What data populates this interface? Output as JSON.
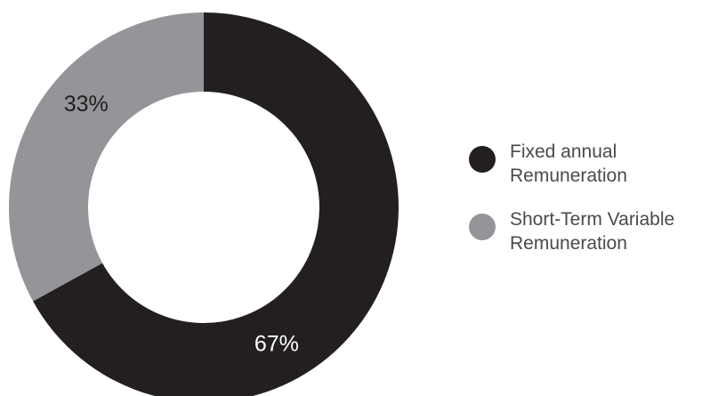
{
  "chart_data": {
    "type": "pie",
    "variant": "donut",
    "categories": [
      "Fixed annual Remuneration",
      "Short-Term Variable Remuneration"
    ],
    "values": [
      67,
      33
    ],
    "slice_labels": [
      "67%",
      "33%"
    ],
    "colors": [
      "#231f20",
      "#939598"
    ],
    "label_colors": [
      "#ffffff",
      "#231f20"
    ],
    "legend": {
      "placement": "right",
      "items": [
        {
          "label": "Fixed annual\nRemuneration",
          "color": "#231f20",
          "marker": "circle"
        },
        {
          "label": "Short-Term Variable\nRemuneration",
          "color": "#939598",
          "marker": "circle"
        }
      ]
    }
  }
}
